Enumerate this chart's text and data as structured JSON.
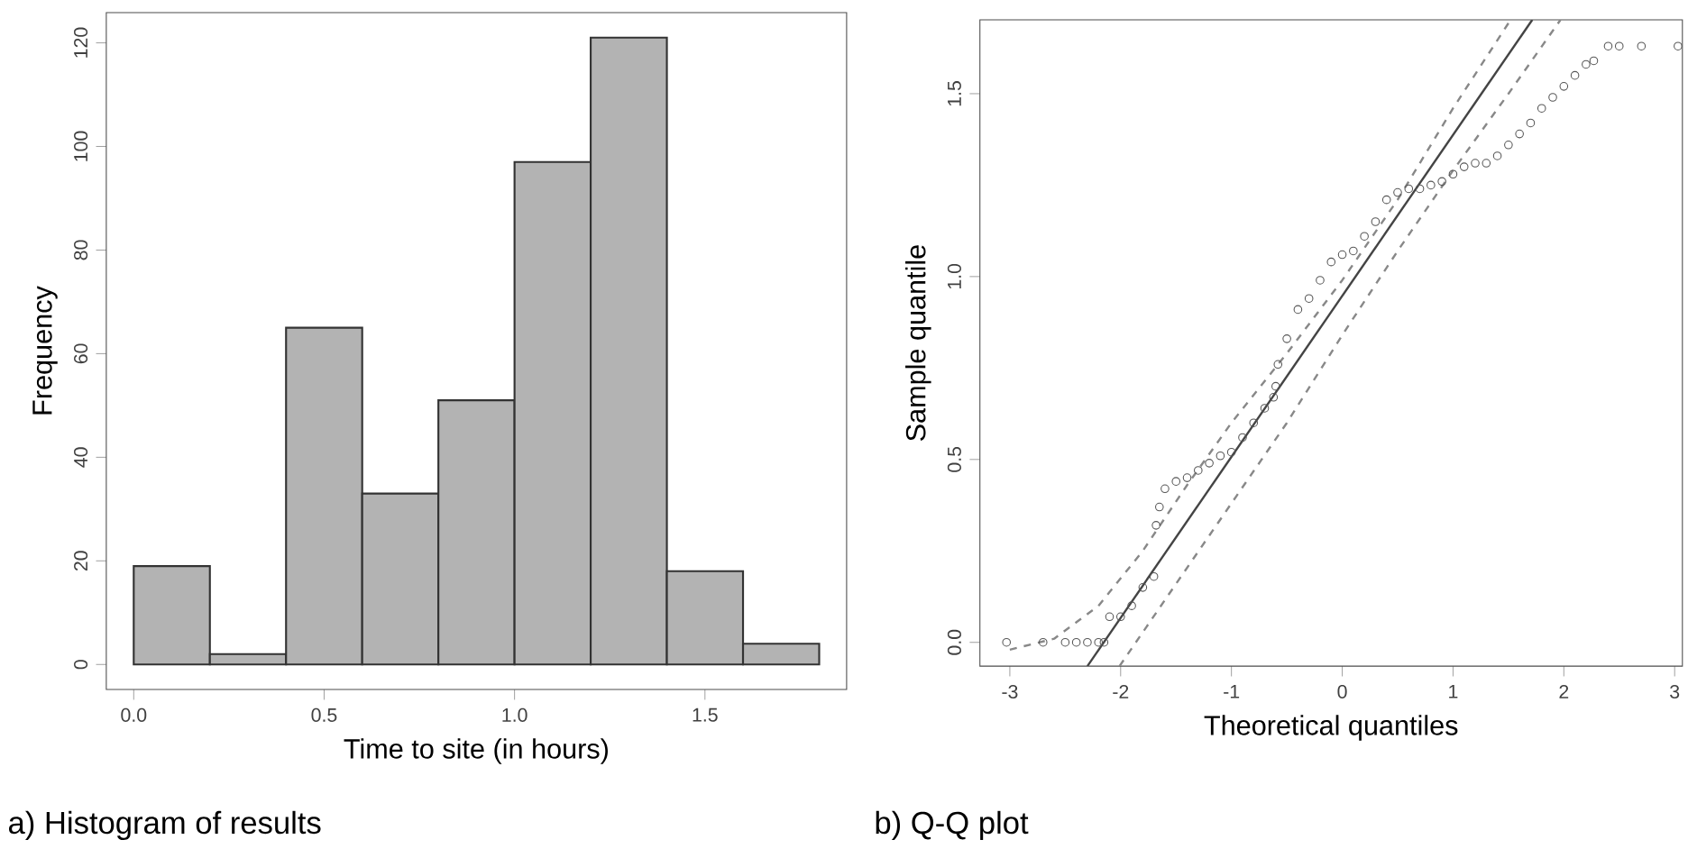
{
  "chart_data": [
    {
      "type": "histogram",
      "bins": [
        0,
        0.2,
        0.4,
        0.6,
        0.8,
        1.0,
        1.2,
        1.4,
        1.6,
        1.8
      ],
      "values": [
        19,
        2,
        65,
        33,
        51,
        97,
        121,
        18,
        4
      ],
      "color": "#b3b3b3",
      "xlabel": "Time to site (in hours)",
      "ylabel": "Frequency",
      "xlim": [
        -0.072,
        1.872
      ],
      "ylim": [
        -4.84,
        125.84
      ],
      "xticks": [
        {
          "value": 0,
          "label": "0.0"
        },
        0.5,
        {
          "value": 1,
          "label": "1.0"
        },
        1.5
      ],
      "yticks": [
        0,
        20,
        40,
        60,
        80,
        100,
        120
      ],
      "annotations": [
        "a) Histogram of results"
      ]
    },
    {
      "type": "scatter",
      "xlabel": "Theoretical quantiles",
      "ylabel": "Sample quantile",
      "xlim": [
        -3.27,
        3.07
      ],
      "ylim": [
        -0.065,
        1.702
      ],
      "xticks": [
        -3,
        -2,
        -1,
        0,
        1,
        2,
        3
      ],
      "yticks": [
        {
          "value": 0,
          "label": "0.0"
        },
        0.5,
        {
          "value": 1,
          "label": "1.0"
        },
        1.5
      ],
      "annotations": [
        "b) Q-Q plot"
      ],
      "series": [
        {
          "type": "scatter",
          "marker": "circle",
          "color": "#555555",
          "x": [
            -3.03,
            -2.7,
            -2.5,
            -2.4,
            -2.3,
            -2.2,
            -2.15,
            -2.1,
            -2.0,
            -1.9,
            -1.8,
            -1.7,
            -1.68,
            -1.65,
            -1.6,
            -1.5,
            -1.4,
            -1.3,
            -1.2,
            -1.1,
            -1.0,
            -0.9,
            -0.8,
            -0.7,
            -0.62,
            -0.6,
            -0.58,
            -0.5,
            -0.4,
            -0.3,
            -0.2,
            -0.1,
            0,
            0.1,
            0.2,
            0.3,
            0.4,
            0.5,
            0.6,
            0.7,
            0.8,
            0.9,
            1.0,
            1.1,
            1.2,
            1.3,
            1.4,
            1.5,
            1.6,
            1.7,
            1.8,
            1.9,
            2.0,
            2.1,
            2.2,
            2.27,
            2.4,
            2.5,
            2.7,
            3.03
          ],
          "values": [
            0,
            0,
            0,
            0,
            0,
            0,
            0,
            0.07,
            0.07,
            0.1,
            0.15,
            0.18,
            0.32,
            0.37,
            0.42,
            0.44,
            0.45,
            0.47,
            0.49,
            0.51,
            0.52,
            0.56,
            0.6,
            0.64,
            0.67,
            0.7,
            0.76,
            0.83,
            0.91,
            0.94,
            0.99,
            1.04,
            1.06,
            1.07,
            1.11,
            1.15,
            1.21,
            1.23,
            1.24,
            1.24,
            1.25,
            1.26,
            1.28,
            1.3,
            1.31,
            1.31,
            1.33,
            1.36,
            1.39,
            1.42,
            1.46,
            1.49,
            1.52,
            1.55,
            1.58,
            1.59,
            1.63,
            1.63,
            1.63,
            1.63
          ]
        },
        {
          "type": "line",
          "line_style": "solid",
          "color": "#444444",
          "x": [
            -2.3,
            1.715
          ],
          "values": [
            -0.065,
            1.702
          ]
        },
        {
          "type": "line",
          "line_style": "dashed",
          "color": "#888888",
          "x": [
            -3.0,
            -2.6,
            -2.2,
            -1.8,
            -1.4,
            -1.0,
            -0.5,
            0,
            0.5,
            1.0,
            1.52
          ],
          "values": [
            -0.02,
            0.01,
            0.1,
            0.25,
            0.43,
            0.6,
            0.79,
            0.99,
            1.21,
            1.46,
            1.702
          ]
        },
        {
          "type": "line",
          "line_style": "dashed",
          "color": "#888888",
          "x": [
            -2.01,
            -1.5,
            -1.0,
            -0.5,
            0,
            0.5,
            1.0,
            1.5,
            1.97
          ],
          "values": [
            -0.065,
            0.16,
            0.38,
            0.6,
            0.84,
            1.07,
            1.29,
            1.5,
            1.702
          ]
        }
      ]
    }
  ]
}
